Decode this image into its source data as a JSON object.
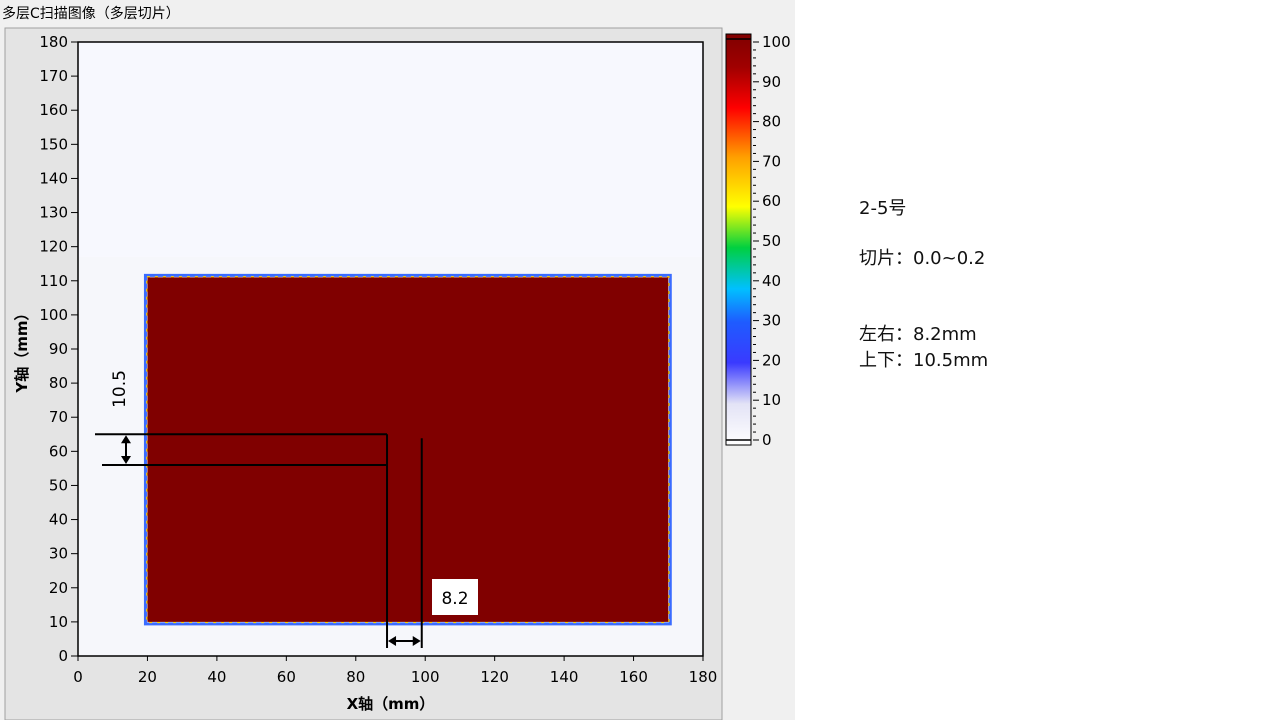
{
  "window_title": "多层C扫描图像（多层切片）",
  "chart_data": {
    "type": "heatmap",
    "xlabel": "X轴（mm）",
    "ylabel": "Y轴（mm）",
    "xlim": [
      0,
      180
    ],
    "ylim": [
      0,
      180
    ],
    "xticks": [
      "0",
      "20",
      "40",
      "60",
      "80",
      "100",
      "120",
      "140",
      "160",
      "180"
    ],
    "yticks": [
      "0",
      "10",
      "20",
      "30",
      "40",
      "50",
      "60",
      "70",
      "80",
      "90",
      "100",
      "110",
      "120",
      "130",
      "140",
      "150",
      "160",
      "170",
      "180"
    ],
    "colorbar_ticks": [
      "0",
      "10",
      "20",
      "30",
      "40",
      "50",
      "60",
      "70",
      "80",
      "90",
      "100"
    ],
    "colorbar_range": [
      0,
      100
    ],
    "scan_area": {
      "x": [
        0,
        180
      ],
      "y": [
        0,
        117
      ]
    },
    "specimen": {
      "x": [
        20,
        170
      ],
      "y": [
        10,
        111
      ],
      "value": 100
    },
    "defect_marker": {
      "vertical_span": [
        56,
        65
      ],
      "horizontal_span": [
        89,
        99
      ],
      "vertical_label": "10.5",
      "horizontal_label": "8.2"
    },
    "colors": {
      "specimen": "#800000",
      "background": "#f6f7fb",
      "panel": "#f0f0f0"
    }
  },
  "info": {
    "sample": "2-5号",
    "slice": "切片：0.0~0.2",
    "lr": "左右：8.2mm",
    "ud": "上下：10.5mm"
  }
}
